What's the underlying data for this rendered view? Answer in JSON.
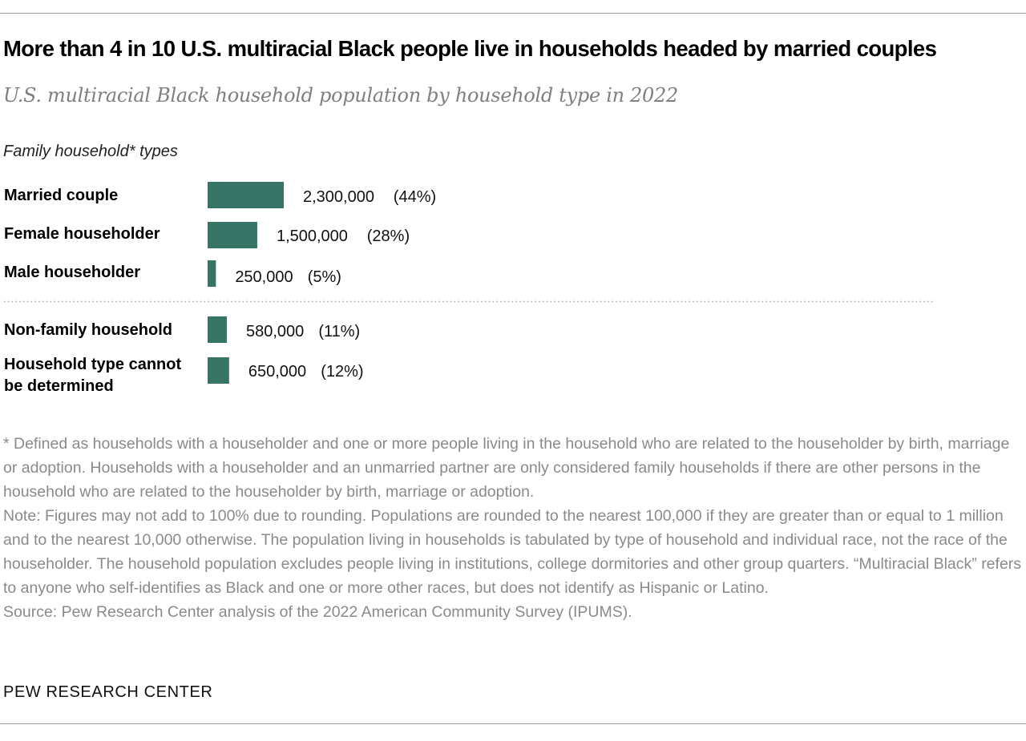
{
  "title": "More than 4 in 10 U.S. multiracial Black people live in households headed by married couples",
  "subtitle": "U.S. multiracial Black household population by household type in 2022",
  "group_label": "Family household* types",
  "colors": {
    "bar": "#367566",
    "divider": "#a8a8a8",
    "footnote": "#8a8a8a"
  },
  "chart_data": {
    "type": "bar",
    "orientation": "horizontal",
    "categories": [
      "Married couple",
      "Female householder",
      "Male householder",
      "Non-family household",
      "Household type cannot be determined"
    ],
    "category_lines": [
      [
        "Married couple"
      ],
      [
        "Female householder"
      ],
      [
        "Male householder"
      ],
      [
        "Non-family household"
      ],
      [
        "Household type cannot",
        "be determined"
      ]
    ],
    "values": [
      2300000,
      1500000,
      250000,
      580000,
      650000
    ],
    "value_labels": [
      "2,300,000",
      "1,500,000",
      "250,000",
      "580,000",
      "650,000"
    ],
    "percent_labels": [
      "(44%)",
      "(28%)",
      "(5%)",
      "(11%)",
      "(12%)"
    ],
    "groups": [
      {
        "label": "Family household* types",
        "categories": [
          "Married couple",
          "Female householder",
          "Male householder"
        ]
      },
      {
        "label": "",
        "categories": [
          "Non-family household",
          "Household type cannot be determined"
        ]
      }
    ],
    "xlim": [
      0,
      2300000
    ],
    "grid": false,
    "legend": "none"
  },
  "footnotes": {
    "asterisk": "* Defined as households with a householder and one or more people living in the household who are related to the householder by birth, marriage or adoption. Households with a householder and an unmarried partner are only considered family households if there are other persons in the household who are related to the householder by birth, marriage or adoption.",
    "note": "Note: Figures may not add to 100% due to rounding. Populations are rounded to the nearest 100,000 if they are greater than or equal to 1 million and to the nearest 10,000 otherwise. The population living in households is tabulated by type of household and individual race, not the race of the householder. The household population excludes people living in institutions, college dormitories and other group quarters. “Multiracial Black” refers to anyone who self-identifies as Black and one or more other races, but does not identify as Hispanic or Latino.",
    "source": "Source: Pew Research Center analysis of the 2022 American Community Survey (IPUMS)."
  },
  "brand": "PEW RESEARCH CENTER"
}
